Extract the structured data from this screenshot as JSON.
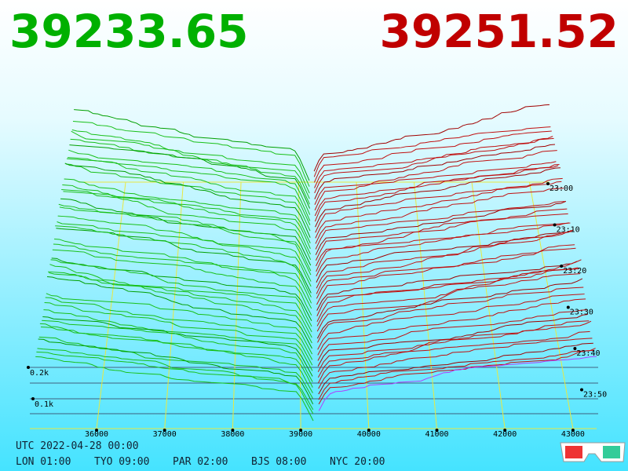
{
  "header": {
    "bid": "39233.65",
    "ask": "39251.52"
  },
  "axis": {
    "price_labels": [
      "36000",
      "37000",
      "38000",
      "39000",
      "40000",
      "41000",
      "42000",
      "43000"
    ],
    "time_labels": [
      "23:00",
      "23:10",
      "23:20",
      "23:30",
      "23:40",
      "23:50"
    ],
    "volume_labels": [
      "0.2k",
      "0.1k"
    ]
  },
  "footer": {
    "utc": "UTC 2022-04-28 00:00",
    "zones": [
      "LON 01:00",
      "TYO 09:00",
      "PAR 02:00",
      "BJS 08:00",
      "NYC 20:00"
    ]
  }
}
